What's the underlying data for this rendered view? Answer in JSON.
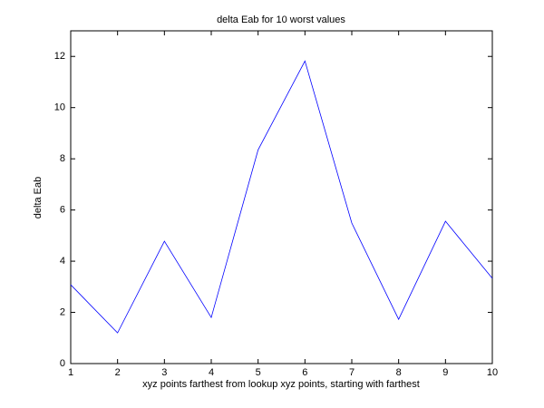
{
  "chart_data": {
    "type": "line",
    "title": "delta Eab for 10 worst values",
    "x_label": "xyz points farthest from lookup xyz points, starting with farthest",
    "y_label": "delta Eab",
    "x": [
      1,
      2,
      3,
      4,
      5,
      6,
      7,
      8,
      9,
      10
    ],
    "series": [
      {
        "name": "delta Eab",
        "color": "#0000ff",
        "values": [
          3.08,
          1.2,
          4.78,
          1.8,
          8.35,
          11.82,
          5.49,
          1.73,
          5.56,
          3.33
        ]
      }
    ],
    "xlim": [
      1,
      10
    ],
    "xticks": [
      1,
      2,
      3,
      4,
      5,
      6,
      7,
      8,
      9,
      10
    ],
    "ylim": [
      0,
      13
    ],
    "yticks": [
      0,
      2,
      4,
      6,
      8,
      10,
      12
    ],
    "grid": false,
    "legend": false
  }
}
